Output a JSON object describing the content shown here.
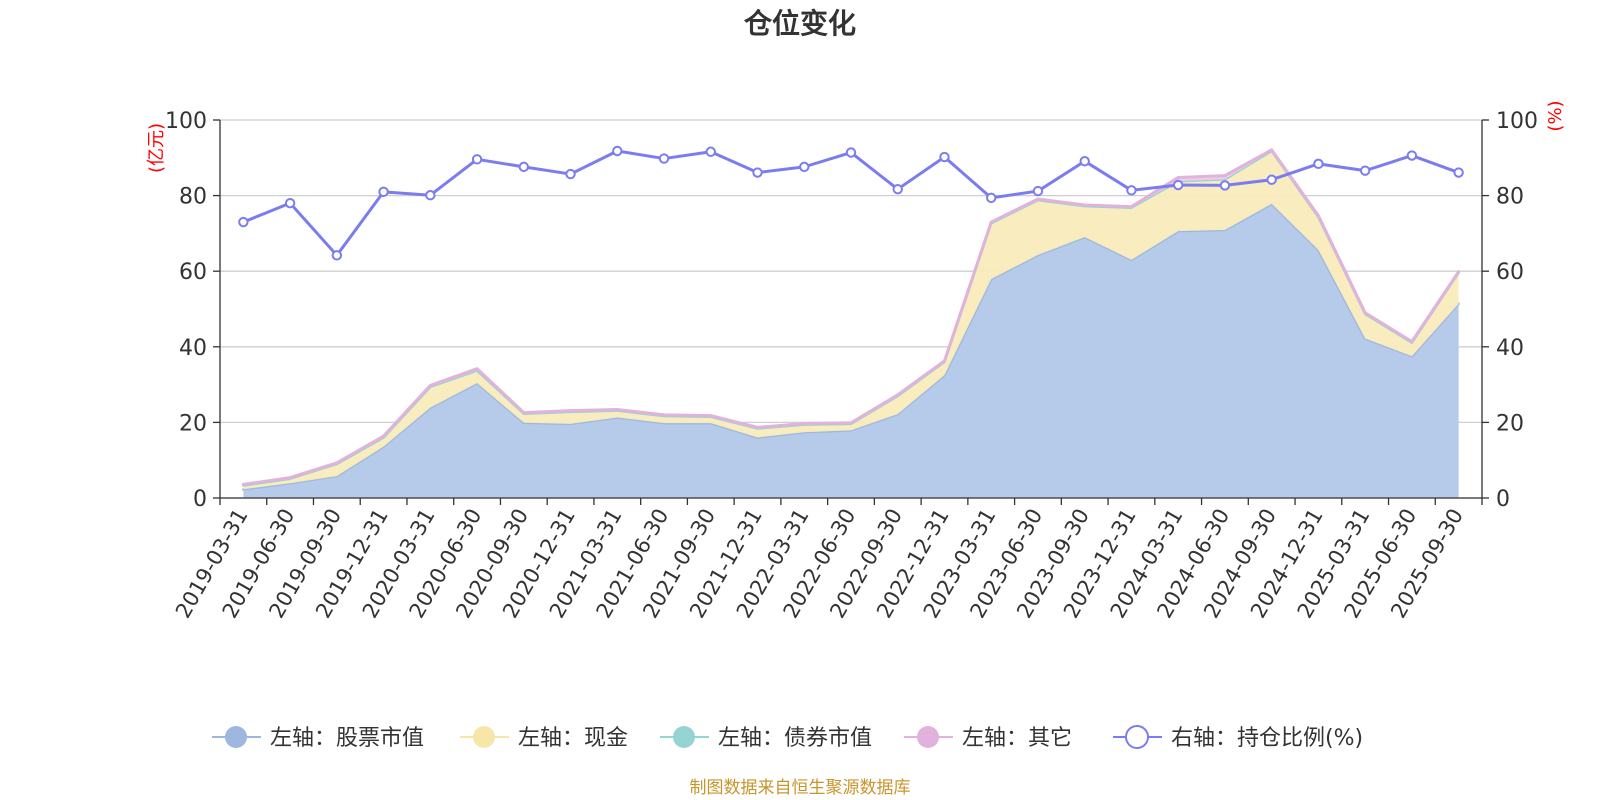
{
  "chart_data": {
    "type": "area",
    "title": "仓位变化",
    "source": "制图数据来自恒生聚源数据库",
    "left_axis_unit": "(亿元)",
    "right_axis_unit": "(%)",
    "left_ylim": [
      0,
      100
    ],
    "right_ylim": [
      0,
      100
    ],
    "left_ticks": [
      "0",
      "20",
      "40",
      "60",
      "80",
      "100"
    ],
    "right_ticks": [
      "0",
      "20",
      "40",
      "60",
      "80",
      "100"
    ],
    "grid": true,
    "legend_position": "bottom",
    "categories": [
      "2019-03-31",
      "2019-06-30",
      "2019-09-30",
      "2019-12-31",
      "2020-03-31",
      "2020-06-30",
      "2020-09-30",
      "2020-12-31",
      "2021-03-31",
      "2021-06-30",
      "2021-09-30",
      "2021-12-31",
      "2022-03-31",
      "2022-06-30",
      "2022-09-30",
      "2022-12-31",
      "2023-03-31",
      "2023-06-30",
      "2023-09-30",
      "2023-12-31",
      "2024-03-31",
      "2024-06-30",
      "2024-09-30",
      "2024-12-31",
      "2025-03-31",
      "2025-06-30",
      "2025-09-30"
    ],
    "series": [
      {
        "name": "左轴：股票市值",
        "axis": "left",
        "kind": "stacked-area",
        "color": "#9db7e1",
        "fill": "#b6cbe9",
        "values": [
          2.3,
          3.9,
          5.8,
          13.6,
          23.9,
          30.4,
          19.9,
          19.6,
          21.3,
          19.8,
          19.8,
          16.0,
          17.4,
          17.9,
          22.2,
          32.5,
          57.9,
          64.3,
          69.0,
          63.0,
          70.6,
          70.9,
          77.8,
          65.6,
          42.2,
          37.5,
          51.4
        ]
      },
      {
        "name": "左轴：现金",
        "axis": "left",
        "kind": "stacked-area",
        "color": "#f8e6a8",
        "fill": "#f9ecbc",
        "values": [
          1.0,
          1.2,
          3.2,
          2.4,
          5.5,
          3.3,
          2.4,
          3.2,
          1.8,
          1.9,
          1.7,
          2.4,
          2.0,
          1.7,
          4.8,
          3.5,
          14.8,
          14.5,
          8.2,
          13.8,
          13.2,
          13.4,
          14.0,
          8.7,
          6.5,
          3.6,
          8.2
        ]
      },
      {
        "name": "左轴：债券市值",
        "axis": "left",
        "kind": "stacked-area",
        "color": "#96d4d4",
        "fill": "#a9dcdc",
        "values": [
          0,
          0,
          0,
          0,
          0,
          0,
          0,
          0,
          0,
          0,
          0,
          0,
          0,
          0,
          0,
          0,
          0,
          0,
          0,
          0,
          0,
          0,
          0,
          0,
          0,
          0,
          0
        ]
      },
      {
        "name": "左轴：其它",
        "axis": "left",
        "kind": "stacked-area",
        "color": "#e2b2dc",
        "fill": "#eccbe8",
        "values": [
          0.3,
          0.3,
          0.3,
          0.4,
          0.4,
          0.5,
          0.3,
          0.3,
          0.3,
          0.3,
          0.3,
          0.3,
          0.3,
          0.3,
          0.3,
          0.3,
          0.3,
          0.3,
          0.3,
          0.3,
          1.0,
          1.0,
          0.3,
          0.4,
          0.3,
          0.3,
          0.3
        ]
      },
      {
        "name": "右轴：持仓比例(%)",
        "axis": "right",
        "kind": "line",
        "color": "#7b7cf0",
        "fill": "#ffffff",
        "values": [
          73.0,
          78.0,
          64.2,
          81.0,
          80.1,
          89.6,
          87.6,
          85.7,
          91.8,
          89.8,
          91.6,
          86.1,
          87.6,
          91.4,
          81.7,
          90.2,
          79.4,
          81.2,
          89.1,
          81.4,
          82.8,
          82.7,
          84.2,
          88.4,
          86.6,
          90.6,
          86.1
        ]
      }
    ]
  }
}
